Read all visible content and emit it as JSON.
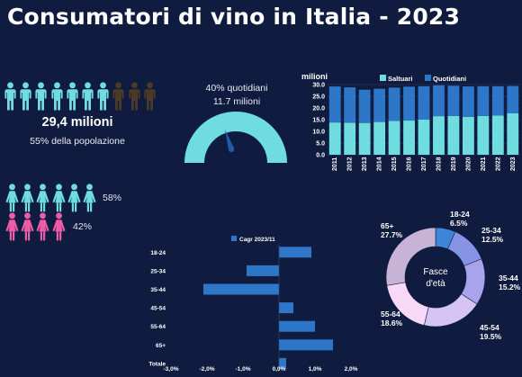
{
  "title": "Consumatori di vino in Italia - 2023",
  "total": {
    "value": "29,4 milioni",
    "share": "55% della popolazione"
  },
  "people_icons": {
    "highlighted": 7,
    "total": 10,
    "highlight_color": "#6fdde0",
    "dim_color": "#4a3a26"
  },
  "gender": {
    "male": {
      "pct": "58%",
      "icons": 6,
      "color": "#6fdde0"
    },
    "female": {
      "pct": "42%",
      "icons": 4,
      "color": "#ee5ca8"
    }
  },
  "gauge": {
    "line1": "40% quotidiani",
    "line2": "11.7 milioni",
    "fraction": 0.4,
    "color": "#6fdde0",
    "needle_color": "#1f5cab"
  },
  "chart_data": [
    {
      "type": "bar",
      "stacked": true,
      "ylabel": "milioni",
      "categories": [
        "2011",
        "2012",
        "2013",
        "2014",
        "2015",
        "2016",
        "2017",
        "2018",
        "2019",
        "2020",
        "2021",
        "2022",
        "2023"
      ],
      "series": [
        {
          "name": "Saltuari",
          "color": "#6fdde0",
          "values": [
            13.8,
            13.7,
            13.6,
            14.0,
            14.5,
            14.6,
            15.0,
            16.5,
            16.6,
            16.2,
            16.6,
            16.8,
            17.7
          ]
        },
        {
          "name": "Quotidiani",
          "color": "#2e77c8",
          "values": [
            15.4,
            15.1,
            14.2,
            14.2,
            14.2,
            14.5,
            14.3,
            13.2,
            12.9,
            13.0,
            12.7,
            12.5,
            11.7
          ]
        }
      ],
      "ylim": [
        0,
        30
      ],
      "yticks": [
        "0.0",
        "5.0",
        "10.0",
        "15.0",
        "20.0",
        "25.0",
        "30.0"
      ]
    },
    {
      "type": "bar",
      "orientation": "horizontal",
      "legend": "Cagr 2023/11",
      "categories": [
        "18-24",
        "25-34",
        "35-44",
        "45-54",
        "55-64",
        "65+",
        "Totale"
      ],
      "values": [
        0.9,
        -0.9,
        -2.1,
        0.4,
        1.0,
        1.5,
        0.2
      ],
      "color": "#2e77c8",
      "xlim": [
        -3,
        2
      ],
      "xticks": [
        "-3,0%",
        "-2,0%",
        "-1,0%",
        "0,0%",
        "1,0%",
        "2,0%"
      ]
    },
    {
      "type": "pie",
      "center_label": [
        "Fasce",
        "d'età"
      ],
      "slices": [
        {
          "label": "18-24",
          "value": 6.5,
          "text": "6.5%",
          "color": "#3b86d6"
        },
        {
          "label": "25-34",
          "value": 12.5,
          "text": "12.5%",
          "color": "#8794e6"
        },
        {
          "label": "35-44",
          "value": 15.2,
          "text": "15.2%",
          "color": "#a9a3ee"
        },
        {
          "label": "45-54",
          "value": 19.5,
          "text": "19.5%",
          "color": "#d6c4f4"
        },
        {
          "label": "55-64",
          "value": 18.6,
          "text": "18.6%",
          "color": "#f7d8f7"
        },
        {
          "label": "65+",
          "value": 27.7,
          "text": "27.7%",
          "color": "#c7b3d6"
        }
      ]
    }
  ]
}
